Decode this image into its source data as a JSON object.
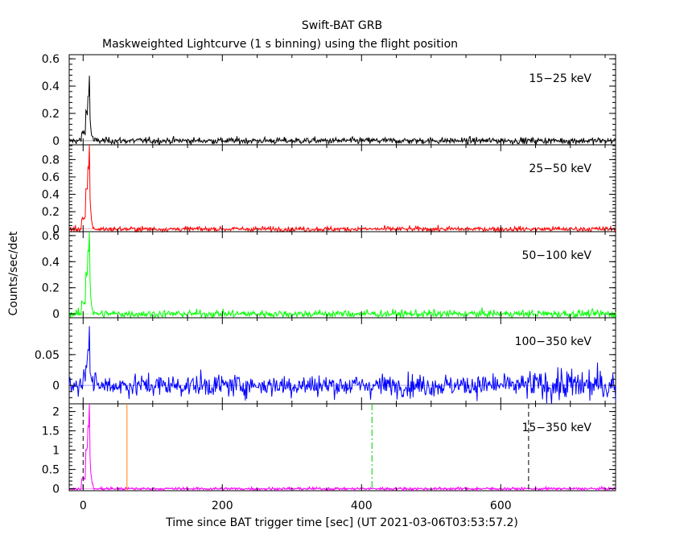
{
  "title": "Swift-BAT GRB",
  "subtitle": "Maskweighted Lightcurve (1 s binning) using the flight position",
  "chart_data": {
    "type": "line",
    "xlabel": "Time since BAT trigger time [sec] (UT 2021-03-06T03:53:57.2)",
    "ylabel": "Counts/sec/det",
    "xlim": [
      -20,
      765
    ],
    "xticks": [
      0,
      200,
      400,
      600
    ],
    "markers": [
      {
        "x": 0,
        "color": "#000000",
        "style": "dashed"
      },
      {
        "x": 63,
        "color": "#ff7f00",
        "style": "solid"
      },
      {
        "x": 415,
        "color": "#00cc00",
        "style": "dashdot"
      },
      {
        "x": 640,
        "color": "#000000",
        "style": "dashed"
      }
    ],
    "panels": [
      {
        "label": "15−25 keV",
        "color": "#000000",
        "ylim": [
          -0.03,
          0.63
        ],
        "yticks": [
          0,
          0.2,
          0.4,
          0.6
        ],
        "yticklabels": [
          "0",
          "0.2",
          "0.4",
          "0.6"
        ],
        "peak": 0.47,
        "noise": 0.012
      },
      {
        "label": "25−50 keV",
        "color": "#ff0000",
        "ylim": [
          -0.03,
          0.97
        ],
        "yticks": [
          0,
          0.2,
          0.4,
          0.6,
          0.8
        ],
        "yticklabels": [
          "0",
          "0.2",
          "0.4",
          "0.6",
          "0.8"
        ],
        "peak": 1.0,
        "noise": 0.015
      },
      {
        "label": "50−100 keV",
        "color": "#00ff00",
        "ylim": [
          -0.03,
          0.63
        ],
        "yticks": [
          0,
          0.2,
          0.4,
          0.6
        ],
        "yticklabels": [
          "0",
          "0.2",
          "0.4",
          "0.6"
        ],
        "peak": 0.7,
        "noise": 0.015
      },
      {
        "label": "100−350 keV",
        "color": "#0000ff",
        "ylim": [
          -0.03,
          0.11
        ],
        "yticks": [
          0,
          0.05
        ],
        "yticklabels": [
          "0",
          "0.05"
        ],
        "peak": 0.1,
        "noise": 0.009
      },
      {
        "label": "15−350 keV",
        "color": "#ff00ff",
        "ylim": [
          -0.05,
          2.2
        ],
        "yticks": [
          0,
          0.5,
          1,
          1.5,
          2
        ],
        "yticklabels": [
          "0",
          "0.5",
          "1",
          "1.5",
          "2"
        ],
        "peak": 2.3,
        "noise": 0.02
      }
    ]
  }
}
